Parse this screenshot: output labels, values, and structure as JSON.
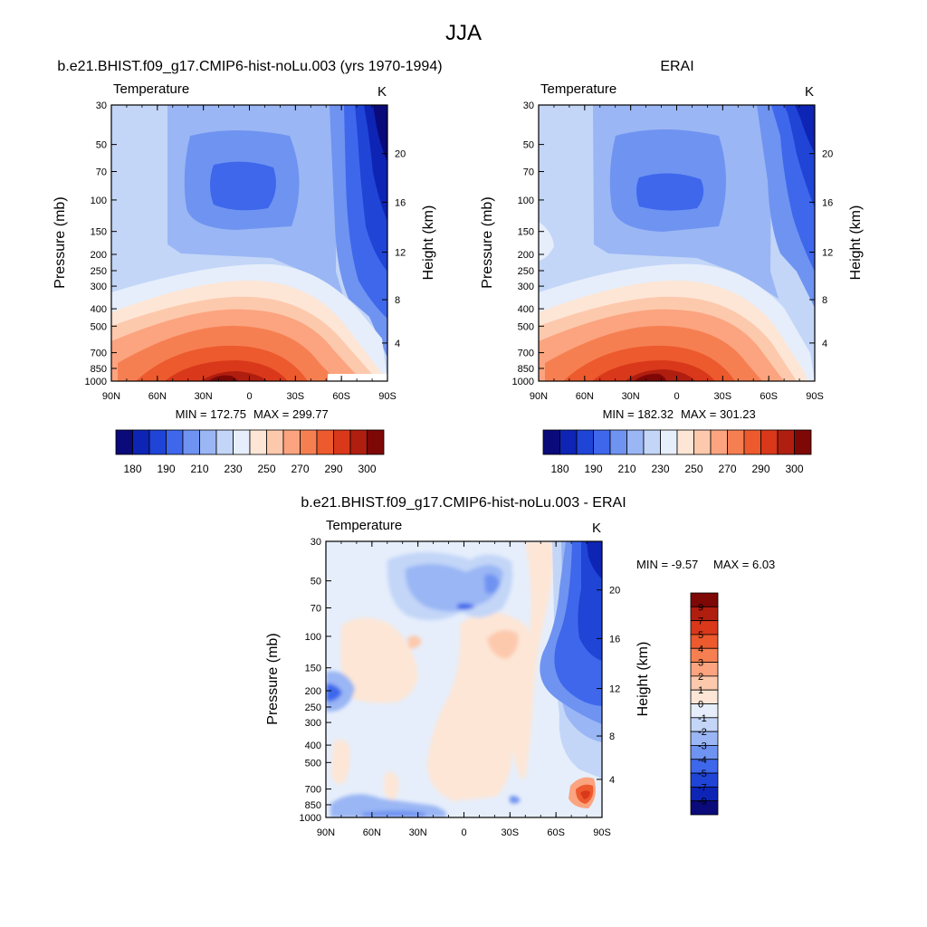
{
  "figure": {
    "title": "JJA"
  },
  "chart_data": [
    {
      "type": "heatmap",
      "title": "b.e21.BHIST.f09_g17.CMIP6-hist-noLu.003 (yrs 1970-1994)",
      "variable": "Temperature",
      "units": "K",
      "ylabel": "Pressure (mb)",
      "y2label": "Height (km)",
      "x_ticks": [
        "90N",
        "60N",
        "30N",
        "0",
        "30S",
        "60S",
        "90S"
      ],
      "y_ticks": [
        "30",
        "50",
        "70",
        "100",
        "150",
        "200",
        "250",
        "300",
        "400",
        "500",
        "700",
        "850",
        "1000"
      ],
      "y2_ticks": [
        "20",
        "16",
        "12",
        "8",
        "4"
      ],
      "min_label": "MIN = 172.75",
      "max_label": "MAX = 299.77",
      "min": 172.75,
      "max": 299.77,
      "colorbar_labels": [
        "180",
        "190",
        "210",
        "230",
        "250",
        "270",
        "290",
        "300"
      ],
      "colorbar_colors": [
        "#0a0a7a",
        "#0d24b5",
        "#1f44d6",
        "#3e67ec",
        "#6f93f1",
        "#9ab6f4",
        "#c3d6f8",
        "#e6eefb",
        "#fde6d6",
        "#fdc9ad",
        "#fba47f",
        "#f67f52",
        "#ec5a2e",
        "#d9381a",
        "#b01e10",
        "#7e0806"
      ],
      "key_points": [
        {
          "lat": "30N-0",
          "pressure": "850-1000",
          "value": "~298 (max)"
        },
        {
          "lat": "20N-10S",
          "pressure": "100",
          "value": "~195 (tropical tropopause min)"
        },
        {
          "lat": "80S-90S",
          "pressure": "30",
          "value": "~180 (polar min)"
        }
      ]
    },
    {
      "type": "heatmap",
      "title": "ERAI",
      "variable": "Temperature",
      "units": "K",
      "ylabel": "Pressure (mb)",
      "y2label": "Height (km)",
      "x_ticks": [
        "90N",
        "60N",
        "30N",
        "0",
        "30S",
        "60S",
        "90S"
      ],
      "y_ticks": [
        "30",
        "50",
        "70",
        "100",
        "150",
        "200",
        "250",
        "300",
        "400",
        "500",
        "700",
        "850",
        "1000"
      ],
      "y2_ticks": [
        "20",
        "16",
        "12",
        "8",
        "4"
      ],
      "min_label": "MIN = 182.32",
      "max_label": "MAX = 301.23",
      "min": 182.32,
      "max": 301.23,
      "colorbar_labels": [
        "180",
        "190",
        "210",
        "230",
        "250",
        "270",
        "290",
        "300"
      ],
      "colorbar_colors": [
        "#0a0a7a",
        "#0d24b5",
        "#1f44d6",
        "#3e67ec",
        "#6f93f1",
        "#9ab6f4",
        "#c3d6f8",
        "#e6eefb",
        "#fde6d6",
        "#fdc9ad",
        "#fba47f",
        "#f67f52",
        "#ec5a2e",
        "#d9381a",
        "#b01e10",
        "#7e0806"
      ]
    },
    {
      "type": "heatmap",
      "title": "b.e21.BHIST.f09_g17.CMIP6-hist-noLu.003 - ERAI",
      "variable": "Temperature",
      "units": "K",
      "ylabel": "Pressure (mb)",
      "y2label": "Height (km)",
      "x_ticks": [
        "90N",
        "60N",
        "30N",
        "0",
        "30S",
        "60S",
        "90S"
      ],
      "y_ticks": [
        "30",
        "50",
        "70",
        "100",
        "150",
        "200",
        "250",
        "300",
        "400",
        "500",
        "700",
        "850",
        "1000"
      ],
      "y2_ticks": [
        "20",
        "16",
        "12",
        "8",
        "4"
      ],
      "min_label": "MIN =  -9.57",
      "max_label": "MAX =   6.03",
      "min": -9.57,
      "max": 6.03,
      "colorbar_labels": [
        "9",
        "7",
        "5",
        "4",
        "3",
        "2",
        "1",
        "0",
        "-1",
        "-2",
        "-3",
        "-4",
        "-5",
        "-7",
        "-9"
      ],
      "colorbar_colors": [
        "#7e0806",
        "#b01e10",
        "#d9381a",
        "#ec5a2e",
        "#f67f52",
        "#fba47f",
        "#fdc9ad",
        "#fde6d6",
        "#e6eefb",
        "#c3d6f8",
        "#9ab6f4",
        "#6f93f1",
        "#3e67ec",
        "#1f44d6",
        "#0d24b5",
        "#0a0a7a"
      ]
    }
  ]
}
